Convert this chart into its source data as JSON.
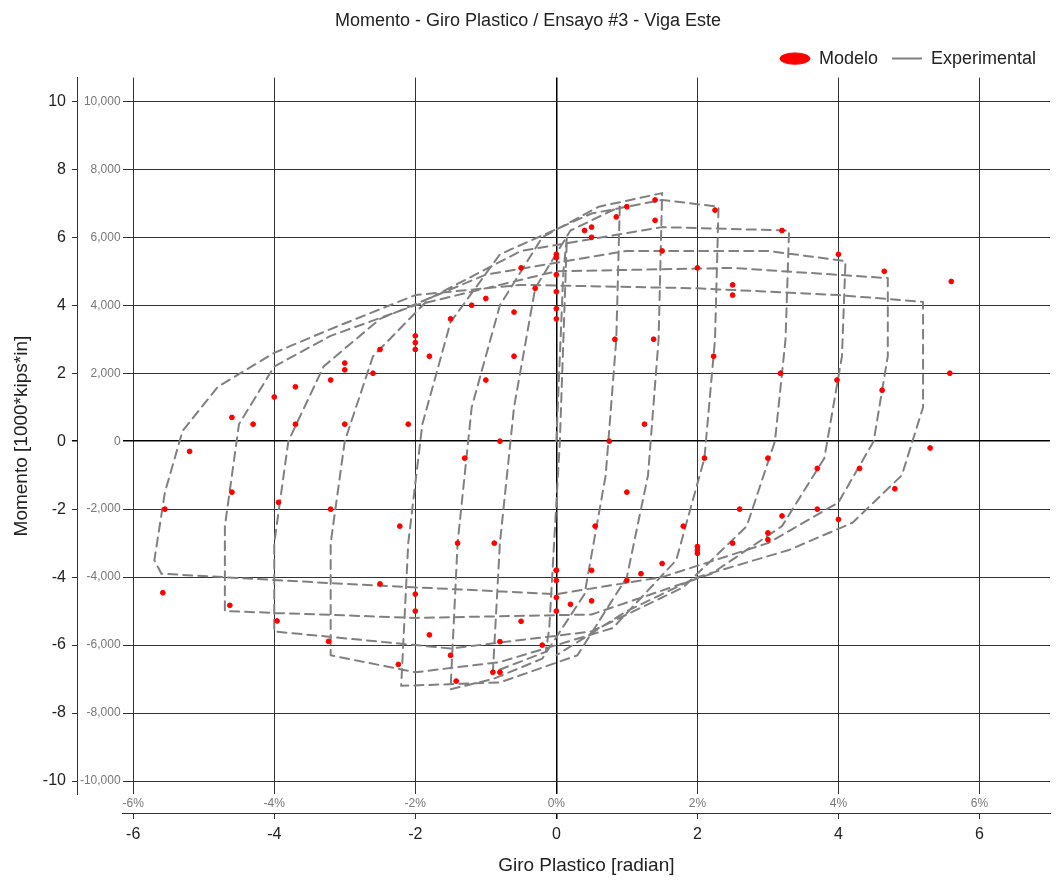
{
  "chart_data": {
    "type": "line",
    "title": "Momento - Giro Plastico / Ensayo #3 - Viga Este",
    "xlabel": "Giro Plastico [radian]",
    "ylabel": "Momento [1000*kips*in]",
    "xlim": [
      -6.15,
      7
    ],
    "xticks": [
      -6,
      -4,
      -2,
      0,
      2,
      4,
      6
    ],
    "ylim": [
      -10.4,
      10.7
    ],
    "yticks": [
      -10,
      -8,
      -6,
      -4,
      -2,
      0,
      2,
      4,
      6,
      8,
      10
    ],
    "x2lim": [
      -6.15,
      7
    ],
    "x2ticks": [
      {
        "value": -6,
        "label": "-6%"
      },
      {
        "value": -4,
        "label": "-4%"
      },
      {
        "value": -2,
        "label": "-2%"
      },
      {
        "value": 0,
        "label": "0%"
      },
      {
        "value": 2,
        "label": "2%"
      },
      {
        "value": 4,
        "label": "4%"
      },
      {
        "value": 6,
        "label": "6%"
      }
    ],
    "y2lim": [
      -10400,
      10700
    ],
    "y2ticks": [
      {
        "value": -10000,
        "label": "-10,000"
      },
      {
        "value": -8000,
        "label": "-8,000"
      },
      {
        "value": -6000,
        "label": "-6,000"
      },
      {
        "value": -4000,
        "label": "-4,000"
      },
      {
        "value": -2000,
        "label": "-2,000"
      },
      {
        "value": 0,
        "label": "0"
      },
      {
        "value": 2000,
        "label": "2,000"
      },
      {
        "value": 4000,
        "label": "4,000"
      },
      {
        "value": 6000,
        "label": "6,000"
      },
      {
        "value": 8000,
        "label": "8,000"
      },
      {
        "value": 10000,
        "label": "10,000"
      }
    ],
    "grid": true,
    "legend": "top right",
    "series": [
      {
        "name": "Modelo",
        "type": "scatter",
        "marker": "circle",
        "color": "#ff0000",
        "x": [
          -0.9,
          -0.88,
          -0.8,
          -0.6,
          -0.3,
          0,
          0.4,
          0.85,
          0.83,
          0.75,
          0.55,
          0.2,
          -0.2,
          -0.8,
          -1.42,
          -1.4,
          -1.3,
          -1,
          -0.6,
          0,
          0.5,
          1,
          1.4,
          1.38,
          1.25,
          1,
          0.5,
          0,
          -0.8,
          -1.5,
          -2.24,
          -2.22,
          -2.1,
          -1.8,
          -1.2,
          -0.5,
          0.5,
          1.4,
          2.25,
          2.23,
          2.1,
          1.8,
          1.2,
          0.5,
          -0.5,
          -1.8,
          -3.23,
          -3.2,
          -3,
          -2.6,
          -2,
          -1,
          0,
          1.5,
          3.2,
          3.18,
          3,
          2.6,
          2,
          1,
          0,
          -2,
          -3.96,
          -3.94,
          -3.7,
          -3.2,
          -2.5,
          -1.5,
          0,
          2,
          4,
          3.98,
          3.7,
          3.2,
          2.5,
          1.5,
          0,
          -2,
          -4.63,
          -4.6,
          -4.3,
          -3.7,
          -3,
          -2,
          0,
          2.5,
          4.65,
          4.62,
          4.3,
          3.7,
          3,
          2,
          0,
          -2.5,
          -5.58,
          -5.55,
          -5.2,
          -4.6,
          -4,
          -3,
          -2,
          0,
          2.5,
          5.6,
          5.58,
          5.3,
          4.8,
          4,
          3,
          2,
          0
        ],
        "values": [
          -6.8,
          -3,
          0,
          2.5,
          4.5,
          5.5,
          6.2,
          6.6,
          3,
          0,
          -2.5,
          -4.8,
          -6,
          -6.8,
          -7.06,
          -3,
          -0.5,
          1.8,
          3.8,
          5.4,
          6.3,
          6.9,
          7.1,
          3,
          0.5,
          -1.5,
          -3.8,
          -5,
          -5.9,
          -6.3,
          -6.57,
          -2.5,
          0.5,
          2.5,
          4,
          5.1,
          6,
          6.5,
          6.8,
          2.5,
          -0.5,
          -2.5,
          -3.9,
          -4.7,
          -5.3,
          -5.7,
          -5.89,
          -2,
          0.5,
          2,
          3.1,
          4.2,
          4.9,
          5.6,
          6.2,
          2,
          -0.5,
          -2,
          -3.1,
          -4.1,
          -4.6,
          -5,
          -5.29,
          -1.8,
          0.5,
          1.8,
          2.7,
          3.6,
          4.4,
          5.1,
          5.5,
          1.8,
          -0.8,
          -2.2,
          -3,
          -3.6,
          -4.1,
          -4.5,
          -4.83,
          -1.5,
          0.5,
          1.6,
          2.3,
          2.9,
          3.9,
          4.6,
          5,
          1.5,
          -0.8,
          -2,
          -2.7,
          -3.2,
          -3.8,
          -4.2,
          -4.46,
          -2,
          -0.3,
          0.7,
          1.3,
          2.1,
          2.7,
          3.6,
          4.3,
          4.7,
          2,
          -0.2,
          -1.4,
          -2.3,
          -2.9,
          -3.3,
          -3.8
        ]
      },
      {
        "name": "Experimental",
        "marker": "none",
        "line_style": "dashed",
        "color": "#808080",
        "x": [
          0,
          0.1,
          0.15,
          0.05,
          -0.1,
          -0.15,
          -0.9,
          -0.8,
          -0.6,
          -0.3,
          0.2,
          0.9,
          0.85,
          0.7,
          0.4,
          -0.2,
          -0.9,
          -1.5,
          -1.4,
          -1.2,
          -0.8,
          -0.2,
          0.6,
          1.5,
          1.45,
          1.3,
          1,
          0.3,
          -0.8,
          -2.2,
          -2.1,
          -1.9,
          -1.5,
          -0.8,
          0.5,
          1.5,
          2.3,
          2.25,
          2.1,
          1.7,
          0.8,
          -0.8,
          -2,
          -3.2,
          -3.2,
          -3,
          -2.6,
          -1.8,
          -0.5,
          1.5,
          3.3,
          3.25,
          3.1,
          2.7,
          1.8,
          0.5,
          -1.5,
          -4,
          -4,
          -3.8,
          -3.3,
          -2.5,
          -1,
          1,
          3,
          4.1,
          4.05,
          3.8,
          3.2,
          2.2,
          0.5,
          -2,
          -4.7,
          -4.7,
          -4.5,
          -4,
          -3.2,
          -2,
          0,
          2.5,
          4.7,
          4.7,
          4.5,
          4,
          3,
          1.5,
          0,
          -3,
          -5.6,
          -5.7,
          -5.55,
          -5.3,
          -4.8,
          -4,
          -3.2,
          -2,
          -0.5,
          2,
          4,
          5.2,
          5.2,
          4.9,
          4.2,
          3.3,
          2,
          1,
          0
        ],
        "values": [
          0,
          5,
          6,
          0,
          -5.5,
          -6.2,
          -6.8,
          -3,
          1,
          4.5,
          6.2,
          6.9,
          3,
          -1,
          -4.5,
          -6.4,
          -7,
          -7.3,
          -3,
          1,
          4,
          6,
          6.9,
          7.3,
          3,
          -1,
          -4,
          -6.3,
          -7.1,
          -7.2,
          -3,
          0.5,
          3.5,
          5.5,
          6.7,
          7.1,
          6.9,
          3,
          -0.5,
          -3.5,
          -5.5,
          -6.5,
          -6.8,
          -6.3,
          -3,
          0,
          2.5,
          4.2,
          5.6,
          6.3,
          6.2,
          3,
          0,
          -2.5,
          -4.3,
          -5.6,
          -6.1,
          -5.6,
          -3,
          0,
          2.2,
          3.6,
          4.9,
          5.6,
          5.6,
          5.3,
          2.5,
          -0.5,
          -2.5,
          -3.9,
          -5.1,
          -5.2,
          -5,
          -2.5,
          0.5,
          2.2,
          3.1,
          4,
          5,
          5.1,
          4.8,
          2.5,
          0,
          -1.8,
          -3,
          -4,
          -4.5,
          -4.2,
          -3.9,
          -3.5,
          -1.5,
          0.3,
          1.6,
          2.6,
          3.3,
          4.3,
          4.6,
          4.5,
          4.3,
          4.1,
          1,
          -1,
          -2.4,
          -3.2,
          -4,
          -5,
          -6.3
        ]
      }
    ]
  }
}
